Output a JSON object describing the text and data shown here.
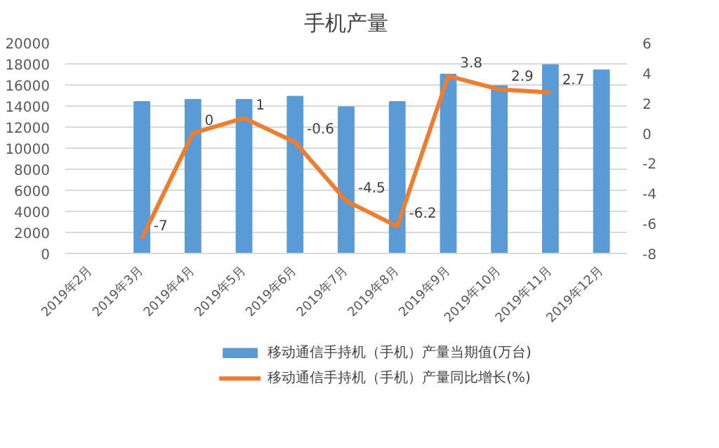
{
  "chart_data": {
    "type": "bar",
    "title": "手机产量",
    "categories": [
      "2019年2月",
      "2019年3月",
      "2019年4月",
      "2019年5月",
      "2019年6月",
      "2019年7月",
      "2019年8月",
      "2019年9月",
      "2019年10月",
      "2019年11月",
      "2019年12月"
    ],
    "series": [
      {
        "name": "移动通信手持机（手机）产量当期值(万台)",
        "color": "#5b9bd5",
        "values": [
          null,
          14400,
          14600,
          14600,
          14900,
          13900,
          14400,
          17000,
          15900,
          17900,
          17400
        ]
      },
      {
        "name": "移动通信手持机（手机）产量同比增长(%)",
        "color": "#ed7d31",
        "type": "line",
        "axis": "y2",
        "values": [
          null,
          -7,
          0,
          1,
          -0.6,
          -4.5,
          -6.2,
          3.8,
          2.9,
          2.7,
          null
        ],
        "value_labels": [
          null,
          "-7",
          "0",
          "1",
          "-0.6",
          "-4.5",
          "-6.2",
          "3.8",
          "2.9",
          "2.7",
          null
        ]
      }
    ],
    "ylim": [
      0,
      20000
    ],
    "yticks": [
      0,
      2000,
      4000,
      6000,
      8000,
      10000,
      12000,
      14000,
      16000,
      18000,
      20000
    ],
    "y2lim": [
      -8,
      6
    ],
    "y2ticks": [
      -8,
      -6,
      -4,
      -2,
      0,
      2,
      4,
      6
    ],
    "grid": "y",
    "legend": "bottom",
    "marker": "none",
    "line_style": "solid"
  }
}
